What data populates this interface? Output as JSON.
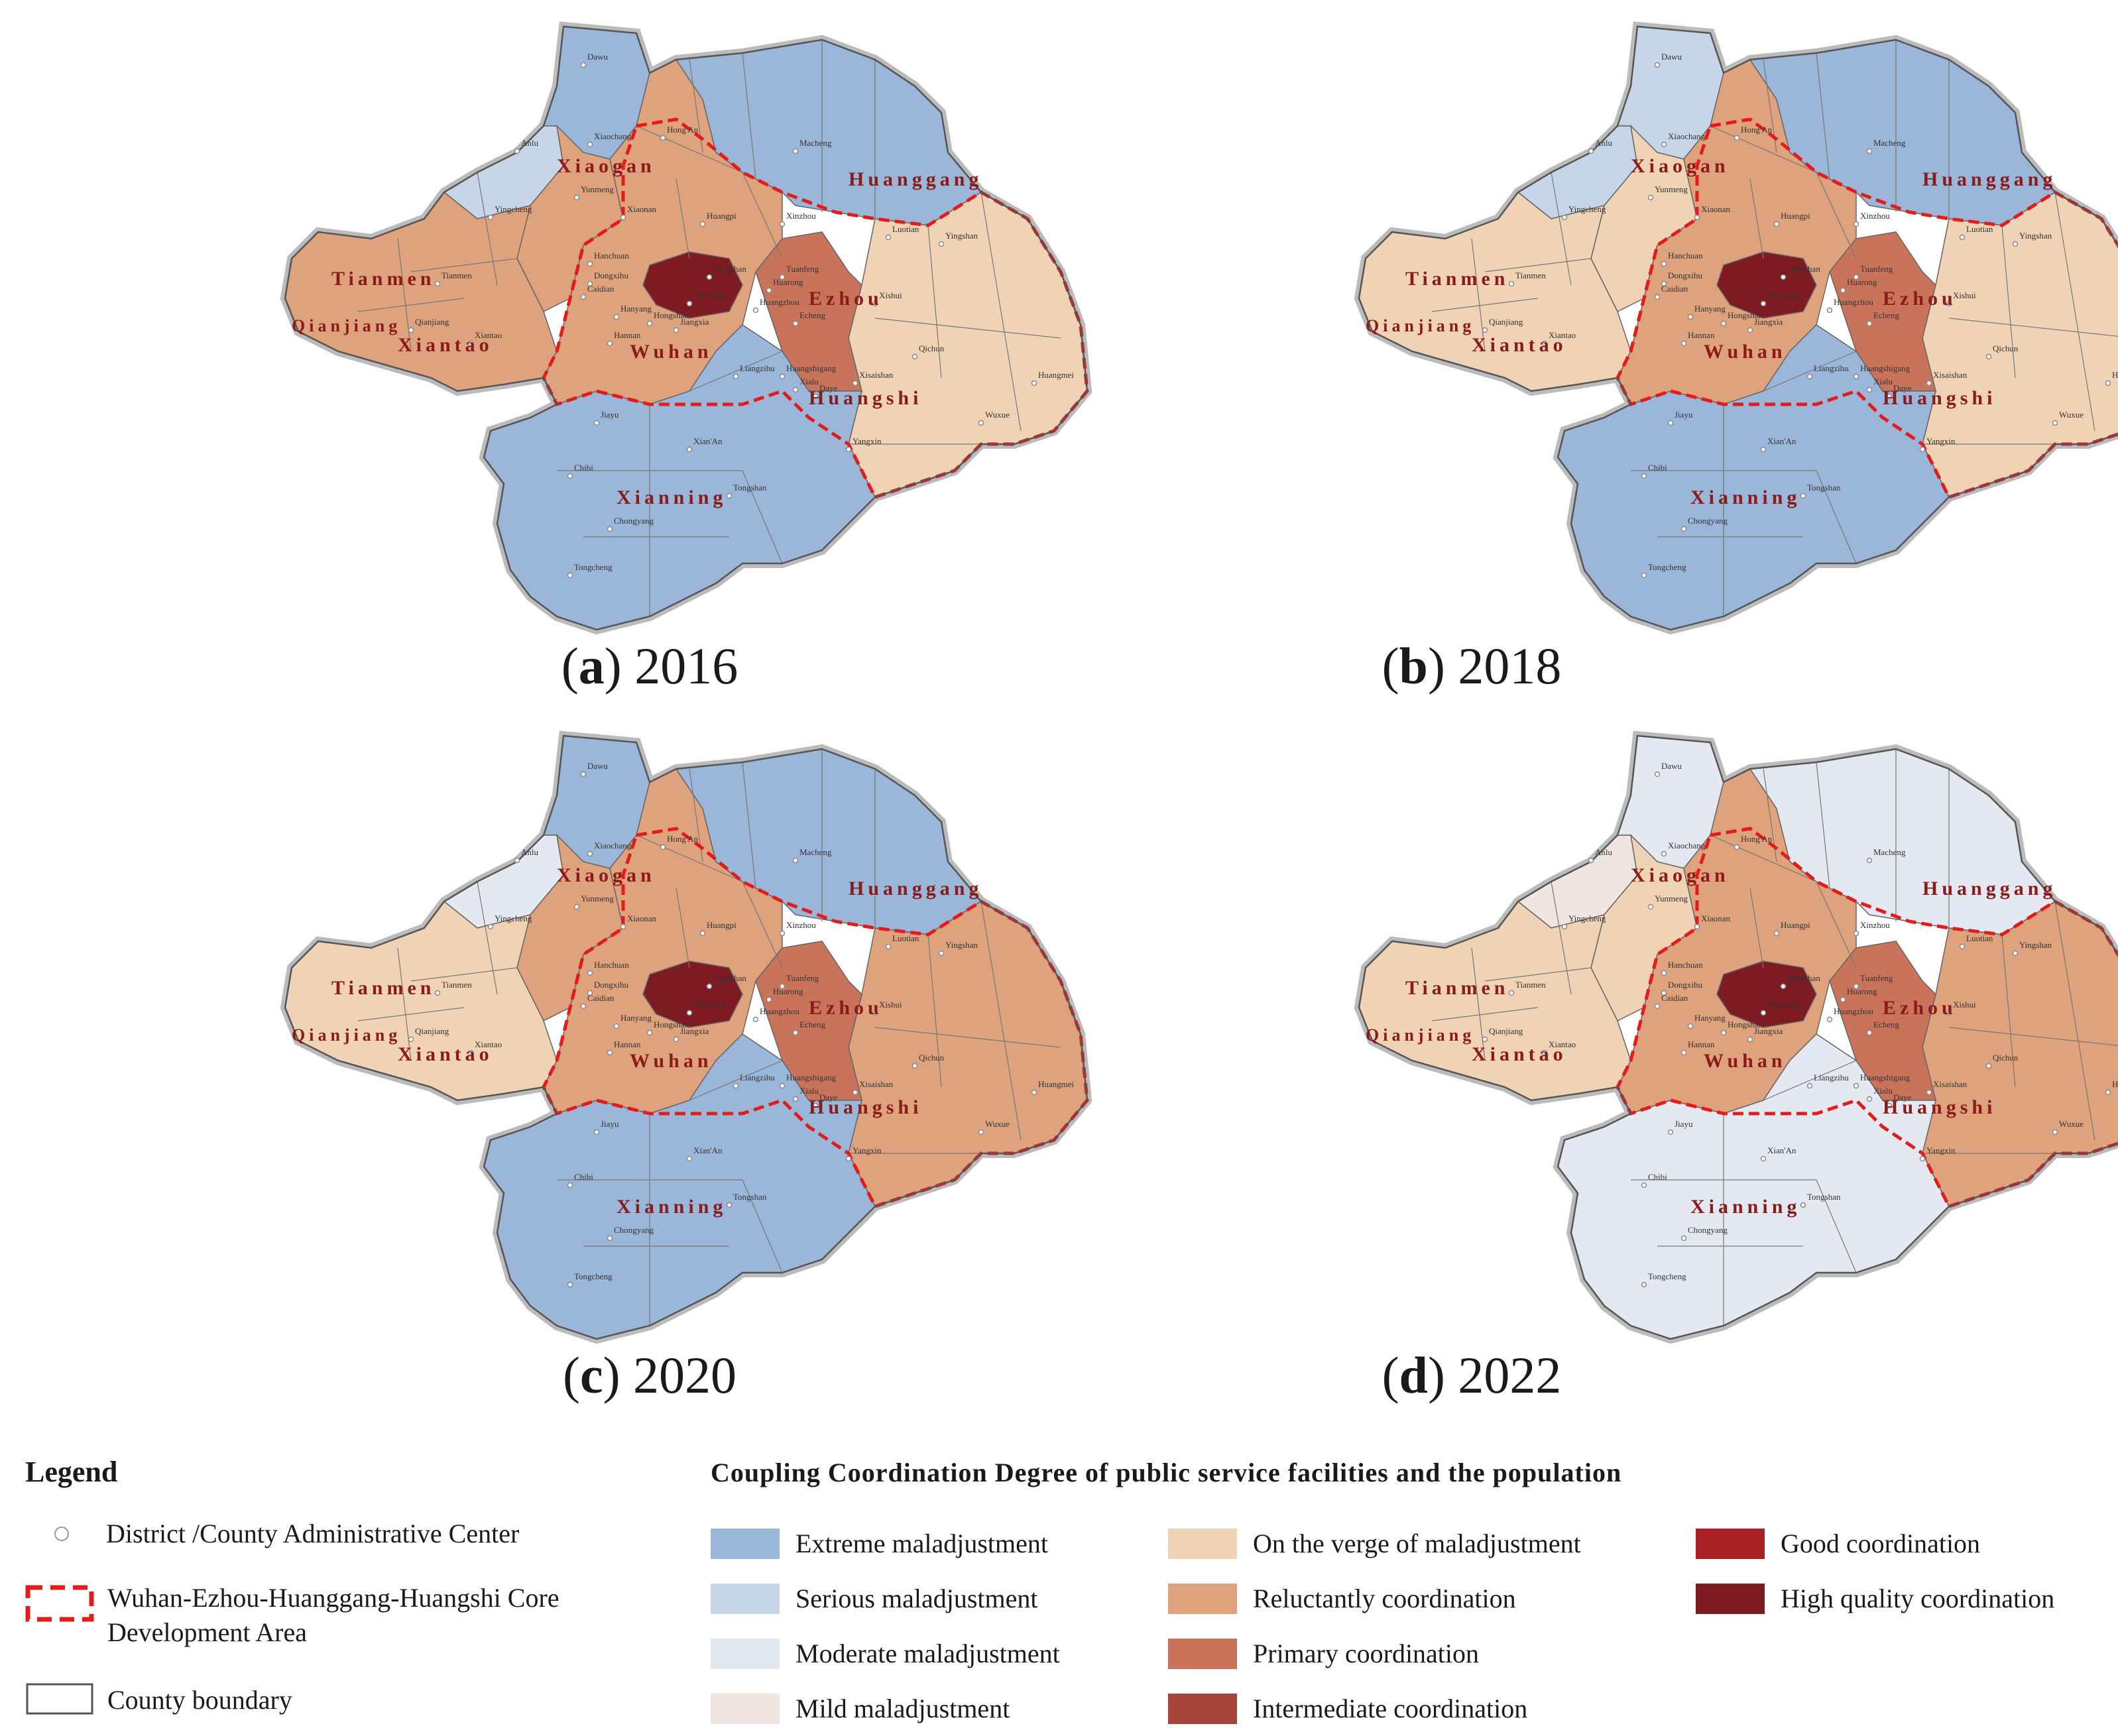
{
  "colors": {
    "extreme": "#9ab6d9",
    "serious": "#c7d5e9",
    "moderate": "#e4e9f1",
    "mild": "#f1e5e2",
    "verge": "#f0d2b4",
    "reluctant": "#dea27c",
    "primary": "#c9735a",
    "intermediate": "#a6433b",
    "good": "#a81f24",
    "high": "#7d1a22",
    "core_boundary": "#e31b1b",
    "county_boundary": "#555555"
  },
  "panels": [
    {
      "label": "a",
      "year": "2016"
    },
    {
      "label": "b",
      "year": "2018"
    },
    {
      "label": "c",
      "year": "2020"
    },
    {
      "label": "d",
      "year": "2022"
    }
  ],
  "cities": [
    "Xiaogan",
    "Huanggang",
    "Tianmen",
    "Qianjiang",
    "Xiantao",
    "Wuhan",
    "Ezhou",
    "Huangshi",
    "Xianning"
  ],
  "counties": [
    "Dawu",
    "Anlu",
    "Hong'An",
    "Macheng",
    "Xiaochang",
    "Yunmeng",
    "Xiaonan",
    "Huangpi",
    "Yingcheng",
    "Hanchuan",
    "Dongxihu",
    "Caidian",
    "Hanyang",
    "Hannan",
    "Jiangxia",
    "Hongshan",
    "Wuchang",
    "Qingshan",
    "Xinzhou",
    "Tuanfeng",
    "Luotian",
    "Yingshan",
    "Xishui",
    "Qichun",
    "Huangmei",
    "Wuxue",
    "Huangzhou",
    "Huarong",
    "Echeng",
    "Liangzihu",
    "Huangshigang",
    "Xialu",
    "Xisaishan",
    "Daye",
    "Yangxin",
    "Jiayu",
    "Xian'An",
    "Chibi",
    "Tongshan",
    "Chongyang",
    "Tongcheng",
    "Tianmen",
    "Qianjiang",
    "Xiantao"
  ],
  "legend": {
    "title": "Legend",
    "admin_center": "District /County Administrative Center",
    "core_area": "Wuhan-Ezhou-Huanggang-Huangshi Core Development Area",
    "county_boundary": "County boundary"
  },
  "ccd": {
    "title": "Coupling Coordination Degree of public service facilities and the population",
    "classes": [
      {
        "label": "Extreme maladjustment",
        "key": "extreme"
      },
      {
        "label": "Serious maladjustment",
        "key": "serious"
      },
      {
        "label": "Moderate maladjustment",
        "key": "moderate"
      },
      {
        "label": "Mild maladjustment",
        "key": "mild"
      },
      {
        "label": "On the verge of maladjustment",
        "key": "verge"
      },
      {
        "label": "Reluctantly coordination",
        "key": "reluctant"
      },
      {
        "label": "Primary coordination",
        "key": "primary"
      },
      {
        "label": "Intermediate coordination",
        "key": "intermediate"
      },
      {
        "label": "Good coordination",
        "key": "good"
      },
      {
        "label": "High quality coordination",
        "key": "high"
      }
    ]
  },
  "region_classes": {
    "2016": {
      "north": "extreme",
      "nw": "serious",
      "xiaogan": "reluctant",
      "west": "reluctant",
      "center": "reluctant",
      "east": "extreme",
      "southeast": "verge",
      "south": "extreme",
      "core": "high",
      "ezhou": "primary"
    },
    "2018": {
      "north": "serious",
      "nw": "serious",
      "xiaogan": "verge",
      "west": "verge",
      "center": "reluctant",
      "east": "extreme",
      "southeast": "verge",
      "south": "extreme",
      "core": "high",
      "ezhou": "primary"
    },
    "2020": {
      "north": "extreme",
      "nw": "moderate",
      "xiaogan": "reluctant",
      "west": "verge",
      "center": "reluctant",
      "east": "extreme",
      "southeast": "reluctant",
      "south": "extreme",
      "core": "high",
      "ezhou": "primary"
    },
    "2022": {
      "north": "moderate",
      "nw": "mild",
      "xiaogan": "verge",
      "west": "verge",
      "center": "reluctant",
      "east": "moderate",
      "southeast": "reluctant",
      "south": "moderate",
      "core": "high",
      "ezhou": "primary"
    }
  }
}
